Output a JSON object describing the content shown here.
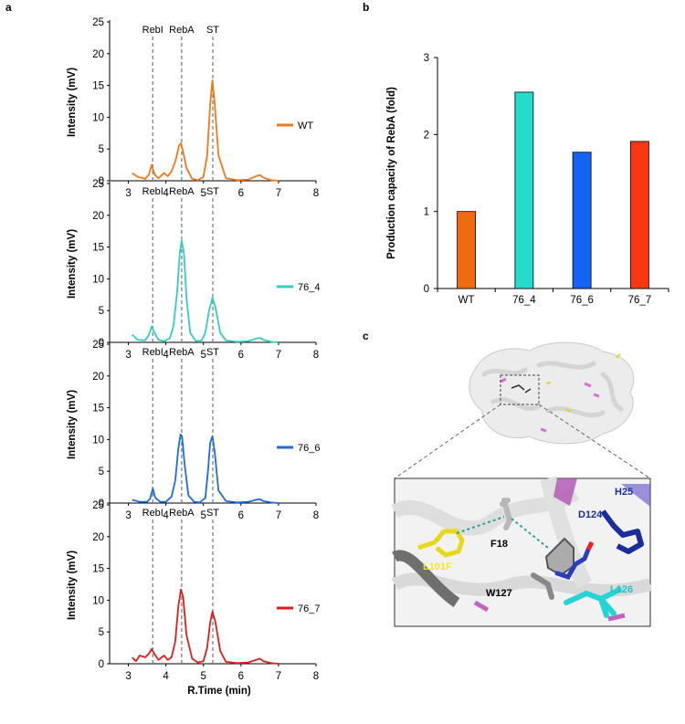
{
  "panel_labels": {
    "a": "a",
    "b": "b",
    "c": "c"
  },
  "chart_data": [
    {
      "type": "line",
      "panel": "a",
      "title": "",
      "xlabel": "R.Time (min)",
      "ylabel": "Intensity (mV)",
      "xlim": [
        2.5,
        8
      ],
      "ylim": [
        0,
        25
      ],
      "xticks": [
        3,
        4,
        5,
        6,
        7,
        8
      ],
      "yticks": [
        0,
        5,
        10,
        15,
        20,
        25
      ],
      "reference_lines": [
        {
          "label": "RebI",
          "x": 3.65
        },
        {
          "label": "RebA",
          "x": 4.42
        },
        {
          "label": "ST",
          "x": 5.25
        }
      ],
      "series": [
        {
          "name": "WT",
          "color": "#ef7a1a",
          "x": [
            3.1,
            3.25,
            3.45,
            3.55,
            3.62,
            3.7,
            3.8,
            3.95,
            4.05,
            4.15,
            4.25,
            4.35,
            4.4,
            4.45,
            4.55,
            4.7,
            4.85,
            5.0,
            5.1,
            5.18,
            5.24,
            5.3,
            5.4,
            5.6,
            5.9,
            6.2,
            6.4,
            6.5,
            6.6,
            6.8,
            7.0
          ],
          "y": [
            1.2,
            0.6,
            0.3,
            1.0,
            2.5,
            1.0,
            0.4,
            1.2,
            0.7,
            1.5,
            3.0,
            5.5,
            5.9,
            4.8,
            2.0,
            0.3,
            0.1,
            0.6,
            4.0,
            12.0,
            15.8,
            12.0,
            4.0,
            0.4,
            0.1,
            0.2,
            0.7,
            0.9,
            0.5,
            0.1,
            0.0
          ]
        },
        {
          "name": "76_4",
          "color": "#2ecfc4",
          "x": [
            3.1,
            3.25,
            3.45,
            3.55,
            3.62,
            3.7,
            3.8,
            3.95,
            4.1,
            4.2,
            4.3,
            4.37,
            4.42,
            4.48,
            4.55,
            4.65,
            4.8,
            4.95,
            5.05,
            5.15,
            5.24,
            5.32,
            5.45,
            5.6,
            5.9,
            6.2,
            6.4,
            6.5,
            6.6,
            6.8,
            7.0
          ],
          "y": [
            1.2,
            0.4,
            0.3,
            1.2,
            2.5,
            1.5,
            0.4,
            0.2,
            0.6,
            2.5,
            8.0,
            14.0,
            16.0,
            14.0,
            7.0,
            1.5,
            0.2,
            0.3,
            1.5,
            5.0,
            7.0,
            5.5,
            1.5,
            0.3,
            0.1,
            0.2,
            0.6,
            0.7,
            0.4,
            0.1,
            0.0
          ]
        },
        {
          "name": "76_6",
          "color": "#1f6be0",
          "x": [
            3.1,
            3.3,
            3.5,
            3.58,
            3.65,
            3.72,
            3.85,
            4.0,
            4.15,
            4.25,
            4.33,
            4.39,
            4.43,
            4.5,
            4.6,
            4.75,
            4.9,
            5.05,
            5.12,
            5.18,
            5.24,
            5.3,
            5.4,
            5.6,
            5.9,
            6.2,
            6.4,
            6.5,
            6.6,
            6.8,
            7.0
          ],
          "y": [
            0.5,
            0.2,
            0.2,
            0.7,
            2.3,
            0.8,
            0.2,
            0.2,
            1.0,
            3.5,
            8.5,
            10.8,
            10.5,
            6.0,
            1.2,
            0.2,
            0.1,
            0.8,
            5.0,
            9.5,
            10.5,
            8.0,
            2.0,
            0.3,
            0.1,
            0.2,
            0.5,
            0.6,
            0.3,
            0.1,
            0.0
          ]
        },
        {
          "name": "76_7",
          "color": "#e21d1d",
          "x": [
            3.1,
            3.2,
            3.3,
            3.45,
            3.55,
            3.62,
            3.7,
            3.8,
            3.95,
            4.05,
            4.15,
            4.25,
            4.33,
            4.4,
            4.46,
            4.55,
            4.7,
            4.85,
            5.0,
            5.1,
            5.18,
            5.24,
            5.32,
            5.45,
            5.6,
            5.9,
            6.2,
            6.4,
            6.5,
            6.6,
            6.8,
            7.0
          ],
          "y": [
            1.0,
            0.4,
            1.3,
            1.0,
            1.6,
            2.3,
            1.5,
            0.6,
            1.3,
            0.6,
            1.0,
            3.5,
            9.0,
            11.7,
            10.5,
            4.5,
            0.8,
            0.2,
            0.4,
            2.5,
            6.5,
            8.2,
            6.5,
            2.0,
            0.3,
            0.1,
            0.2,
            0.6,
            0.8,
            0.4,
            0.1,
            0.0
          ]
        }
      ]
    },
    {
      "type": "bar",
      "panel": "b",
      "title": "",
      "xlabel": "",
      "ylabel": "Production capacity of RebA (fold)",
      "ylim": [
        0,
        3
      ],
      "yticks": [
        0,
        1,
        2,
        3
      ],
      "categories": [
        "WT",
        "76_4",
        "76_6",
        "76_7"
      ],
      "values": [
        1.0,
        2.55,
        1.77,
        1.91
      ],
      "colors": [
        "#f06a10",
        "#24dccb",
        "#1464f4",
        "#ff3612"
      ]
    }
  ],
  "structure_labels": {
    "h25": {
      "text": "H25",
      "color": "#1a2d9c"
    },
    "d124": {
      "text": "D124",
      "color": "#1a2d9c"
    },
    "f18": {
      "text": "F18",
      "color": "#000000"
    },
    "l101f": {
      "text": "L101F",
      "color": "#f2e81e"
    },
    "w127": {
      "text": "W127",
      "color": "#000000"
    },
    "l126": {
      "text": "L126",
      "color": "#19c6c6"
    }
  }
}
